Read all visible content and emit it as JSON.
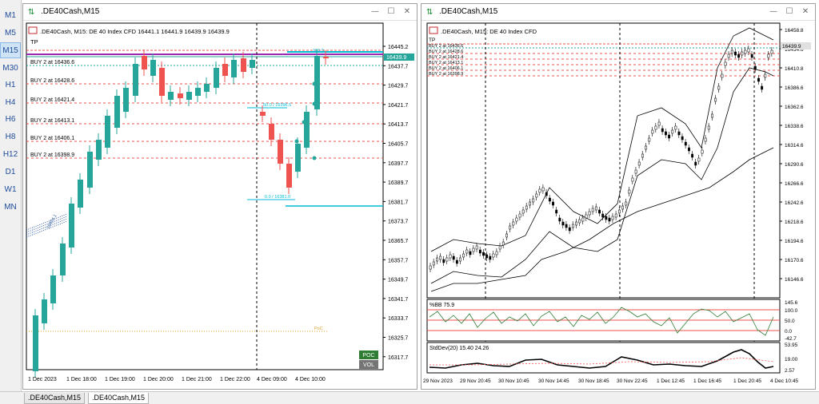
{
  "timeframes": [
    "M1",
    "M5",
    "M15",
    "M30",
    "H1",
    "H4",
    "H6",
    "H8",
    "H12",
    "D1",
    "W1",
    "MN"
  ],
  "active_timeframe": "M15",
  "left_window": {
    "title": ".DE40Cash,M15",
    "info": ".DE40Cash, M15:  DE 40 Index CFD   16441.1  16441.9  16439.9  16439.9",
    "tp_label": "TP",
    "buy_labels": [
      "BUY 2 at 16436.6",
      "BUY 2 at 16428.6",
      "BUY 2 at 16421.4",
      "BUY 2 at 16413.1",
      "BUY 2 at 16406.1",
      "BUY 2 at 16398.9"
    ],
    "price_ticks": [
      "16445.2",
      "16437.7",
      "16429.7",
      "16421.7",
      "16413.7",
      "16405.7",
      "16397.7",
      "16389.7",
      "16381.7",
      "16373.7",
      "16365.7",
      "16357.7",
      "16349.7",
      "16341.7",
      "16333.7",
      "16325.7",
      "16317.7"
    ],
    "current_price": "16439.9",
    "time_ticks": [
      "1 Dec 2023",
      "1 Dec 18:00",
      "1 Dec 19:00",
      "1 Dec 20:00",
      "1 Dec 21:00",
      "1 Dec 22:00",
      "4 Dec 09:00",
      "4 Dec 10:00"
    ],
    "fibo_labels": [
      "100.0",
      "50.0 / 16396.5",
      "0.0 / 16381.0"
    ],
    "poc_label": "POC",
    "vol_label": "VOL",
    "poc_line_label": "PoC"
  },
  "right_window": {
    "title": ".DE40Cash,M15",
    "info": ".DE40Cash, M15:  DE 40 Index CFD",
    "tp_label": "TP",
    "buy_labels": [
      "BUY 2 at 16436.6",
      "BUY 2 at 16428.6",
      "BUY 2 at 16421.4",
      "BUY 2 at 16413.1",
      "BUY 2 at 16406.1",
      "BUY 2 at 16398.9"
    ],
    "price_ticks": [
      "16458.8",
      "16434.6",
      "16410.8",
      "16386.6",
      "16362.6",
      "16338.6",
      "16314.6",
      "16290.6",
      "16266.6",
      "16242.6",
      "16218.6",
      "16194.6",
      "16170.6",
      "16146.6"
    ],
    "current_price": "16439.9",
    "time_ticks": [
      "29 Nov 2023",
      "29 Nov 20:45",
      "30 Nov 10:45",
      "30 Nov 14:45",
      "30 Nov 18:45",
      "30 Nov 22:45",
      "1 Dec 12:45",
      "1 Dec 16:45",
      "1 Dec 20:45",
      "4 Dec 10:45"
    ],
    "bb_label": "%BB 75.9",
    "bb_ticks": [
      "145.6",
      "100.0",
      "50.0",
      "0.0",
      "-42.7"
    ],
    "std_label": "StdDev(20) 15.40 24.26",
    "std_ticks": [
      "53.95",
      "19.00",
      "2.57"
    ]
  },
  "bottom_tabs": [
    ".DE40Cash,M15",
    ".DE40Cash,M15"
  ],
  "colors": {
    "bull": "#26a69a",
    "bear": "#ef5350",
    "fibo": "#00bcd4",
    "purple": "#9c27b0",
    "buyline": "#8d8d8d",
    "tpline": "#ef5350",
    "poc_bg": "#2e7d32",
    "vol_bg": "#757575"
  }
}
